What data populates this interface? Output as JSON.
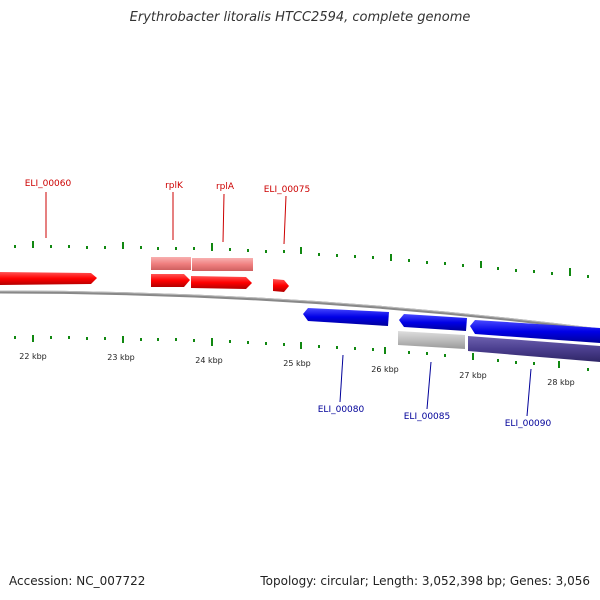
{
  "title": "Erythrobacter litoralis HTCC2594, complete genome",
  "footer": {
    "accession": "Accession: NC_007722",
    "topology": "Topology: circular; Length: 3,052,398 bp; Genes: 3,056"
  },
  "colors": {
    "forward_gene": "#ff0000",
    "forward_feature": "#f08080",
    "reverse_gene": "#0000e6",
    "reverse_feature_light": "#bdbdbd",
    "reverse_feature_dark": "#4b3f8f",
    "backbone": "#888888",
    "tick": "#118811",
    "forward_label": "#cc0000",
    "reverse_label": "#000099"
  },
  "scale": {
    "unit": "kbp",
    "labels": [
      "22 kbp",
      "23 kbp",
      "24 kbp",
      "25 kbp",
      "26 kbp",
      "27 kbp",
      "28 kbp"
    ]
  },
  "forward_genes": [
    {
      "label": "ELI_00060"
    },
    {
      "label": "rplK"
    },
    {
      "label": "rplA"
    },
    {
      "label": "ELI_00075"
    }
  ],
  "reverse_genes": [
    {
      "label": "ELI_00080"
    },
    {
      "label": "ELI_00085"
    },
    {
      "label": "ELI_00090"
    }
  ]
}
